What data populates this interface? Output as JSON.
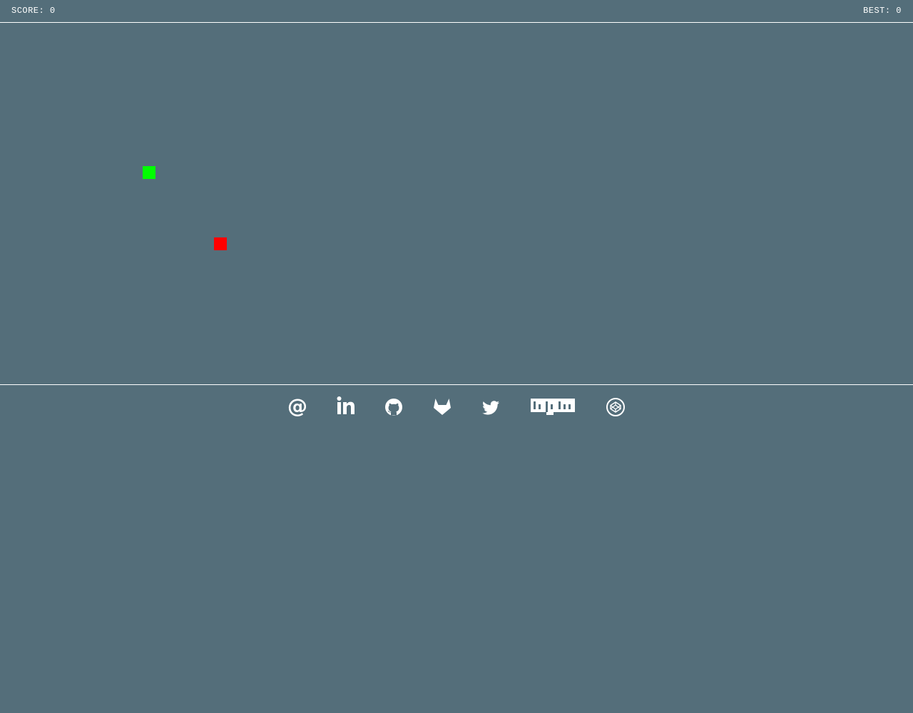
{
  "header": {
    "score_label": "SCORE: 0",
    "best_label": "BEST: 0"
  },
  "game": {
    "score": 0,
    "best": 0,
    "snake_color": "#00ff00",
    "food_color": "#ff0000",
    "background_color": "#546e7a"
  },
  "footer": {
    "links": [
      {
        "icon": "email-icon"
      },
      {
        "icon": "linkedin-icon"
      },
      {
        "icon": "github-icon"
      },
      {
        "icon": "gitlab-icon"
      },
      {
        "icon": "twitter-icon"
      },
      {
        "icon": "npm-icon"
      },
      {
        "icon": "codepen-icon"
      }
    ]
  }
}
